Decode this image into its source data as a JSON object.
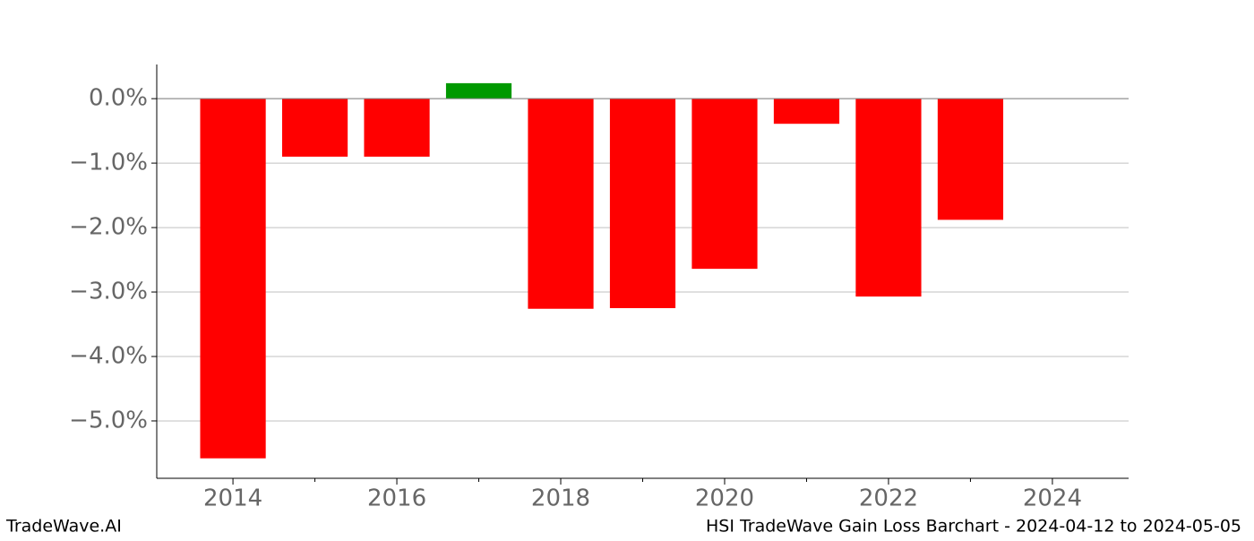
{
  "chart_data": {
    "type": "bar",
    "x": [
      2014,
      2015,
      2016,
      2017,
      2018,
      2019,
      2020,
      2021,
      2022,
      2023
    ],
    "values": [
      -5.58,
      -0.9,
      -0.9,
      0.24,
      -3.26,
      -3.25,
      -2.64,
      -0.39,
      -3.07,
      -1.88
    ],
    "colors": [
      "#ff0000",
      "#ff0000",
      "#ff0000",
      "#009900",
      "#ff0000",
      "#ff0000",
      "#ff0000",
      "#ff0000",
      "#ff0000",
      "#ff0000"
    ],
    "xlim": [
      2013.07,
      2024.93
    ],
    "xticks": [
      2014,
      2016,
      2018,
      2020,
      2022,
      2024
    ],
    "xminorticks": [
      2015,
      2017,
      2019,
      2021,
      2023
    ],
    "ylim": [
      -5.89,
      0.53
    ],
    "yticks": [
      {
        "value": -5,
        "label": "−5.0%"
      },
      {
        "value": -4,
        "label": "−4.0%"
      },
      {
        "value": -3,
        "label": "−3.0%"
      },
      {
        "value": -2,
        "label": "−2.0%"
      },
      {
        "value": -1,
        "label": "−1.0%"
      },
      {
        "value": 0,
        "label": "0.0%"
      }
    ],
    "grid": true,
    "footer_left": "TradeWave.AI",
    "footer_right": "HSI TradeWave Gain Loss Barchart - 2024-04-12 to 2024-05-05"
  }
}
